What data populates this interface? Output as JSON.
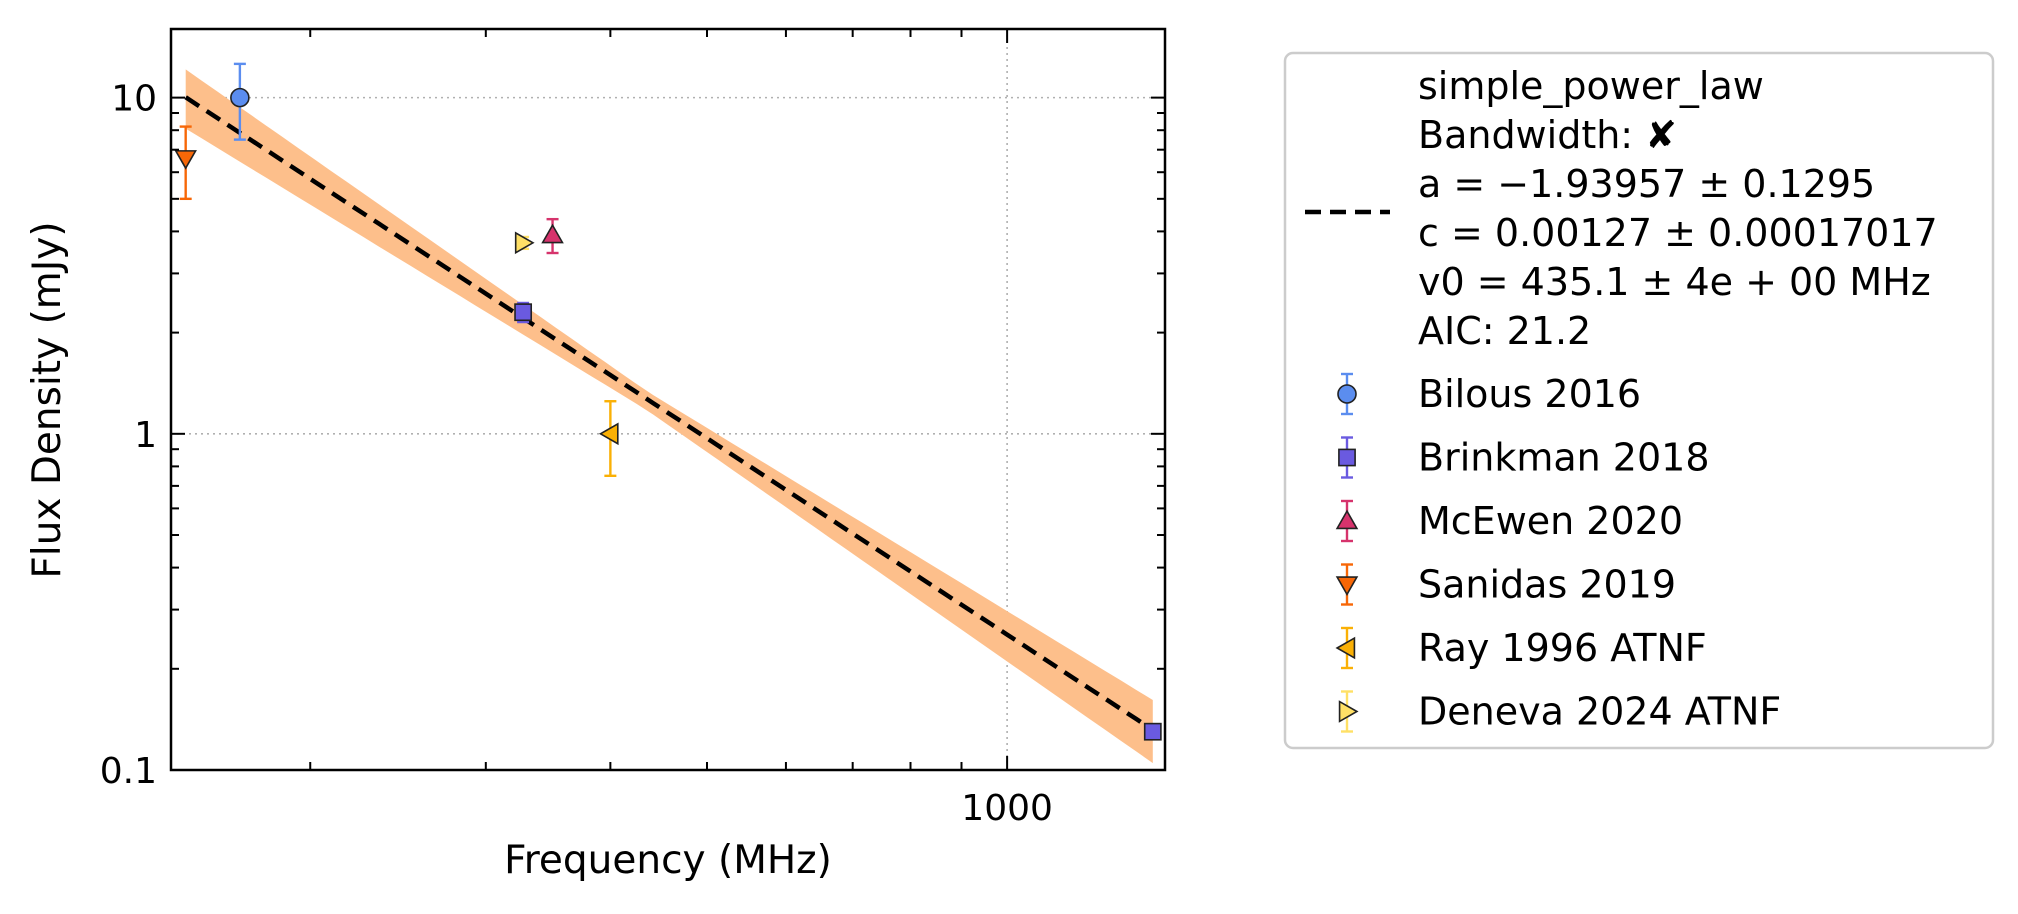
{
  "chart_data": {
    "type": "scatter",
    "xlabel": "Frequency (MHz)",
    "ylabel": "Flux Density (mJy)",
    "xscale": "log",
    "yscale": "log",
    "xlim": [
      145,
      1440
    ],
    "ylim": [
      0.1,
      16
    ],
    "grid": true,
    "legend_position": "outside-right",
    "x_ticks": [
      {
        "value": 1000,
        "label": "1000"
      }
    ],
    "y_ticks": [
      {
        "value": 10,
        "label": "10"
      },
      {
        "value": 1,
        "label": "1"
      },
      {
        "value": 0.1,
        "label": "0.1"
      }
    ],
    "fit": {
      "label_lines": [
        "simple_power_law",
        "Bandwidth: ✘",
        "a = −1.93957 ± 0.1295",
        "c = 0.00127 ± 0.00017017",
        "v0 = 435.1 ± 4e + 00 MHz",
        "AIC: 21.2"
      ],
      "a": -1.93957,
      "a_err": 0.1295,
      "c": 0.00127,
      "c_err": 0.00017017,
      "v0": 435.1,
      "x_range": [
        150,
        1400
      ],
      "line_color": "#000000",
      "band_color": "#fdbf8b"
    },
    "series": [
      {
        "name": "Bilous 2016",
        "marker": "circle",
        "color": "#5b8def",
        "points": [
          {
            "x": 170,
            "y": 10.0,
            "yerr_low": 2.5,
            "yerr_high": 2.6
          }
        ]
      },
      {
        "name": "Brinkman 2018",
        "marker": "square",
        "color": "#6a5ae0",
        "points": [
          {
            "x": 327,
            "y": 2.3,
            "yerr_low": 0.15,
            "yerr_high": 0.15
          },
          {
            "x": 1400,
            "y": 0.13,
            "yerr_low": 0.005,
            "yerr_high": 0.005
          }
        ]
      },
      {
        "name": "McEwen 2020",
        "marker": "triangle-up",
        "color": "#d6336c",
        "points": [
          {
            "x": 350,
            "y": 3.9,
            "yerr_low": 0.45,
            "yerr_high": 0.45
          }
        ]
      },
      {
        "name": "Sanidas 2019",
        "marker": "triangle-down",
        "color": "#f76707",
        "points": [
          {
            "x": 150,
            "y": 6.6,
            "yerr_low": 1.6,
            "yerr_high": 1.6
          }
        ]
      },
      {
        "name": "Ray 1996 ATNF",
        "marker": "triangle-left",
        "color": "#fab005",
        "points": [
          {
            "x": 400,
            "y": 1.0,
            "yerr_low": 0.25,
            "yerr_high": 0.25
          }
        ]
      },
      {
        "name": "Deneva 2024 ATNF",
        "marker": "triangle-right",
        "color": "#ffe066",
        "points": [
          {
            "x": 327,
            "y": 3.7,
            "yerr_low": 0.15,
            "yerr_high": 0.15
          }
        ]
      }
    ]
  }
}
